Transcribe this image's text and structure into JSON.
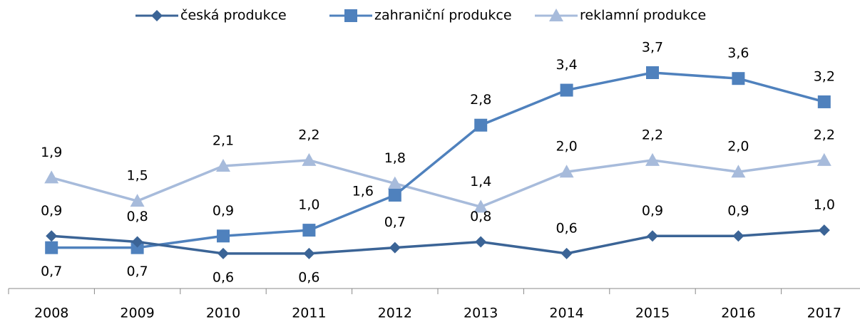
{
  "chart_data": {
    "type": "line",
    "categories": [
      "2008",
      "2009",
      "2010",
      "2011",
      "2012",
      "2013",
      "2014",
      "2015",
      "2016",
      "2017"
    ],
    "series": [
      {
        "name": "česká produkce",
        "color": "#3b6496",
        "marker": "diamond",
        "values": [
          0.9,
          0.8,
          0.6,
          0.6,
          0.7,
          0.8,
          0.6,
          0.9,
          0.9,
          1.0
        ],
        "value_labels": [
          "0,9",
          "0,8",
          "0,6",
          "0,6",
          "0,7",
          "0,8",
          "0,6",
          "0,9",
          "0,9",
          "1,0"
        ]
      },
      {
        "name": "zahraniční produkce",
        "color": "#4f81bd",
        "marker": "square",
        "values": [
          0.7,
          0.7,
          0.9,
          1.0,
          1.6,
          2.8,
          3.4,
          3.7,
          3.6,
          3.2
        ],
        "value_labels": [
          "0,7",
          "0,7",
          "0,9",
          "1,0",
          "1,6",
          "2,8",
          "3,4",
          "3,7",
          "3,6",
          "3,2"
        ]
      },
      {
        "name": "reklamní produkce",
        "color": "#a7bbdb",
        "marker": "triangle",
        "values": [
          1.9,
          1.5,
          2.1,
          2.2,
          1.8,
          1.4,
          2.0,
          2.2,
          2.0,
          2.2
        ],
        "value_labels": [
          "1,9",
          "1,5",
          "2,1",
          "2,2",
          "1,8",
          "1,4",
          "2,0",
          "2,2",
          "2,0",
          "2,2"
        ]
      }
    ],
    "legend": "top"
  }
}
